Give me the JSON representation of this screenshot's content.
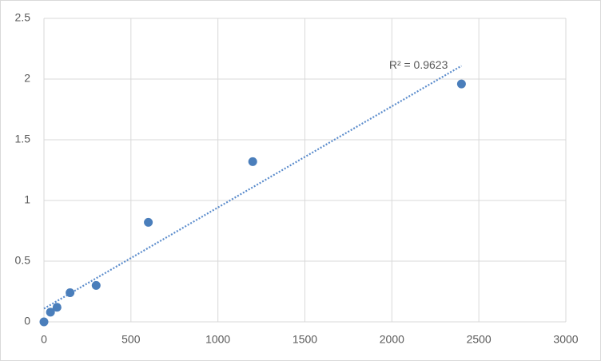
{
  "chart_data": {
    "type": "scatter",
    "x": [
      0,
      37.5,
      75,
      150,
      300,
      600,
      1200,
      2400
    ],
    "values": [
      0,
      0.08,
      0.12,
      0.24,
      0.3,
      0.82,
      1.32,
      1.96
    ],
    "color": "#4a7ebb",
    "xlim": [
      0,
      3000
    ],
    "xticks": [
      0,
      500,
      1000,
      1500,
      2000,
      2500,
      3000
    ],
    "ylim": [
      0,
      2.5
    ],
    "yticks": [
      0,
      0.5,
      1,
      1.5,
      2,
      2.5
    ],
    "grid": true,
    "trendline": "linear",
    "trendline_color": "#5b8ccc",
    "annotation": "R² = 0.9623"
  }
}
